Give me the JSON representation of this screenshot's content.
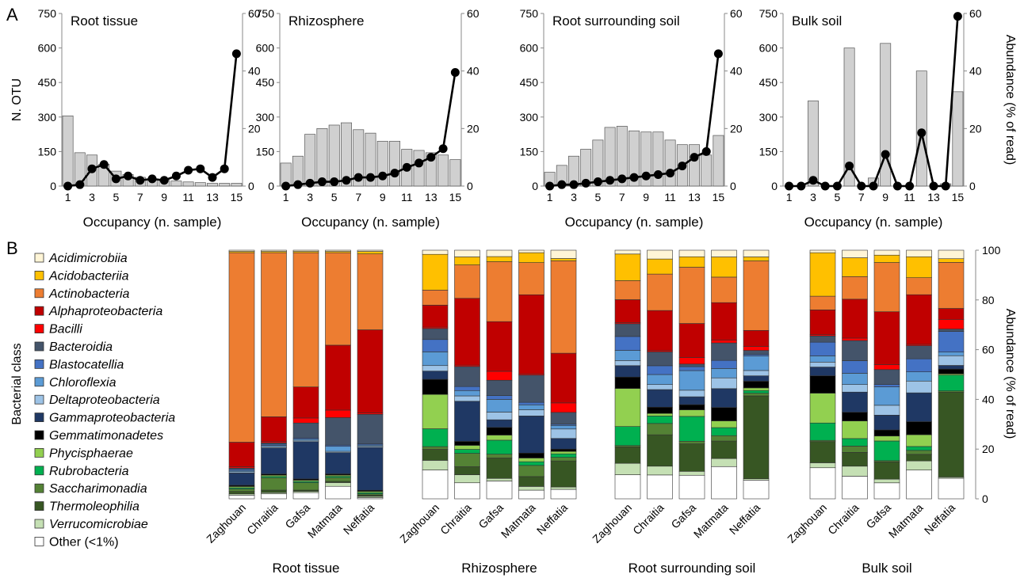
{
  "panel_a": {
    "letter": "A",
    "left_axis_label": "N. OTU",
    "right_axis_label": "Abundance (% of read)",
    "x_axis_label": "Occupancy (n. sample)",
    "left_ticks": [
      "0",
      "150",
      "300",
      "450",
      "600",
      "750"
    ],
    "right_ticks": [
      "0",
      "20",
      "40",
      "60"
    ],
    "x_ticks": [
      "1",
      "3",
      "5",
      "7",
      "9",
      "11",
      "13",
      "15"
    ]
  },
  "panel_b": {
    "letter": "B",
    "legend_title": "Bacterial class",
    "right_axis_label": "Abundance (% of read)",
    "right_ticks": [
      "0",
      "20",
      "40",
      "60",
      "80",
      "100"
    ]
  },
  "colors": {
    "bar_fill": "#d0d0d0",
    "line": "#000000"
  },
  "chart_data": [
    {
      "type": "bar+line",
      "title": "Root tissue",
      "x": [
        1,
        2,
        3,
        4,
        5,
        6,
        7,
        8,
        9,
        10,
        11,
        12,
        13,
        14,
        15
      ],
      "xlabel": "Occupancy (n. sample)",
      "ylabel": "N. OTU",
      "y2label": "Abundance (% of read)",
      "ylim": [
        0,
        750
      ],
      "y2lim": [
        0,
        60
      ],
      "bars": [
        305,
        145,
        135,
        95,
        65,
        50,
        38,
        28,
        25,
        22,
        18,
        15,
        12,
        12,
        12
      ],
      "line": [
        0,
        0.5,
        6,
        7.5,
        2.5,
        3.5,
        2,
        2.5,
        2,
        3.5,
        5.5,
        6,
        3,
        6,
        46
      ]
    },
    {
      "type": "bar+line",
      "title": "Rhizosphere",
      "x": [
        1,
        2,
        3,
        4,
        5,
        6,
        7,
        8,
        9,
        10,
        11,
        12,
        13,
        14,
        15
      ],
      "xlabel": "Occupancy (n. sample)",
      "ylim": [
        0,
        750
      ],
      "y2lim": [
        0,
        60
      ],
      "bars": [
        100,
        130,
        225,
        250,
        265,
        275,
        245,
        230,
        195,
        195,
        160,
        155,
        145,
        135,
        115
      ],
      "line": [
        0,
        0.5,
        1,
        1.5,
        1.5,
        2,
        3,
        3,
        3.5,
        4.5,
        6.5,
        8,
        10,
        13,
        39.5
      ]
    },
    {
      "type": "bar+line",
      "title": "Root surrounding soil",
      "x": [
        1,
        2,
        3,
        4,
        5,
        6,
        7,
        8,
        9,
        10,
        11,
        12,
        13,
        14,
        15
      ],
      "xlabel": "Occupancy (n. sample)",
      "ylim": [
        0,
        750
      ],
      "y2lim": [
        0,
        60
      ],
      "bars": [
        60,
        90,
        130,
        160,
        200,
        255,
        260,
        240,
        235,
        235,
        200,
        180,
        180,
        135,
        220
      ],
      "line": [
        0,
        0.5,
        0.5,
        1,
        1.5,
        2,
        2.5,
        3,
        3.5,
        4,
        4.5,
        7,
        10,
        12,
        46
      ]
    },
    {
      "type": "bar+line",
      "title": "Bulk soil",
      "x": [
        1,
        2,
        3,
        4,
        5,
        6,
        7,
        8,
        9,
        10,
        11,
        12,
        13,
        14,
        15
      ],
      "xlabel": "Occupancy (n. sample)",
      "y2label": "Abundance (% of read)",
      "ylim": [
        0,
        750
      ],
      "y2lim": [
        0,
        60
      ],
      "bars": [
        0,
        0,
        370,
        0,
        0,
        600,
        0,
        35,
        620,
        0,
        0,
        500,
        0,
        10,
        410
      ],
      "line": [
        0,
        0,
        2,
        0,
        0,
        7,
        0,
        0,
        11,
        0,
        0,
        18.5,
        0,
        0,
        59
      ]
    },
    {
      "type": "stacked-bar",
      "ylabel": "Abundance (% of read)",
      "ylim": [
        0,
        100
      ],
      "legend_title": "Bacterial class",
      "legend_position": "left",
      "classes": [
        {
          "name": "Acidimicrobiia",
          "color": "#fff5d6",
          "italic": true
        },
        {
          "name": "Acidobacteriia",
          "color": "#ffc000",
          "italic": true
        },
        {
          "name": "Actinobacteria",
          "color": "#ed7d31",
          "italic": true
        },
        {
          "name": "Alphaproteobacteria",
          "color": "#c00000",
          "italic": true
        },
        {
          "name": "Bacilli",
          "color": "#ff0000",
          "italic": true
        },
        {
          "name": "Bacteroidia",
          "color": "#44546a",
          "italic": true
        },
        {
          "name": "Blastocatellia",
          "color": "#4472c4",
          "italic": true
        },
        {
          "name": "Chloroflexia",
          "color": "#5b9bd5",
          "italic": true
        },
        {
          "name": "Deltaproteobacteria",
          "color": "#9dc3e6",
          "italic": true
        },
        {
          "name": "Gammaproteobacteria",
          "color": "#1f3864",
          "italic": true
        },
        {
          "name": "Gemmatimonadetes",
          "color": "#000000",
          "italic": true
        },
        {
          "name": "Phycisphaerae",
          "color": "#92d050",
          "italic": true
        },
        {
          "name": "Rubrobacteria",
          "color": "#00b050",
          "italic": true
        },
        {
          "name": "Saccharimonadia",
          "color": "#548235",
          "italic": true
        },
        {
          "name": "Thermoleophilia",
          "color": "#375623",
          "italic": true
        },
        {
          "name": "Verrucomicrobiae",
          "color": "#c5e0b4",
          "italic": true
        },
        {
          "name": "Other (<1%)",
          "color": "#ffffff",
          "italic": false
        }
      ],
      "groups": [
        {
          "name": "Root tissue",
          "sites": [
            {
              "name": "Zaghouan",
              "values": [
                0.5,
                0.5,
                77,
                10,
                0.5,
                0.5,
                0.5,
                0.5,
                0.5,
                5,
                0.5,
                0.5,
                0.5,
                1,
                1,
                0.5,
                1.5
              ]
            },
            {
              "name": "Chraitia",
              "values": [
                0.5,
                0.5,
                66,
                10,
                0.5,
                0.5,
                0.5,
                0.5,
                0.5,
                10.5,
                0.5,
                0.5,
                0.5,
                5,
                1,
                0.5,
                2
              ]
            },
            {
              "name": "Gafsa",
              "values": [
                0.5,
                0.5,
                54,
                12.5,
                2,
                6,
                0.5,
                0.5,
                0.5,
                15,
                0.5,
                0.5,
                0.5,
                3,
                0.5,
                0.5,
                2.5
              ]
            },
            {
              "name": "Matmata",
              "values": [
                0.5,
                0.5,
                37,
                26,
                3,
                11,
                0.5,
                2,
                0.5,
                8.5,
                0.5,
                0.5,
                0.5,
                1.5,
                0.5,
                1.5,
                5
              ]
            },
            {
              "name": "Neffatia",
              "values": [
                0.5,
                1,
                31,
                34,
                0.5,
                12,
                0.5,
                0.5,
                0.5,
                17.5,
                0.5,
                0.5,
                0.5,
                0.5,
                0.5,
                0.5,
                0.5
              ]
            }
          ]
        },
        {
          "name": "Rhizosphere",
          "sites": [
            {
              "name": "Zaghouan",
              "values": [
                1.5,
                13,
                5.5,
                8,
                0.5,
                4,
                4.5,
                5,
                2,
                3,
                5.5,
                12.5,
                6.5,
                1,
                4,
                3.5,
                10.5
              ]
            },
            {
              "name": "Chraitia",
              "values": [
                2.5,
                3,
                12.5,
                25,
                0.5,
                7.5,
                1.5,
                2,
                2,
                15,
                1.5,
                1.5,
                1.5,
                5,
                3,
                3,
                6
              ]
            },
            {
              "name": "Gafsa",
              "values": [
                2.5,
                2,
                23.5,
                19.5,
                3.5,
                6,
                1.5,
                5,
                3,
                3,
                3,
                2,
                5.5,
                1.5,
                8,
                1,
                7
              ]
            },
            {
              "name": "Matmata",
              "values": [
                1,
                4,
                13,
                32,
                0.5,
                11,
                1,
                2,
                2.5,
                15,
                2,
                1.5,
                1.5,
                4.5,
                4,
                1.5,
                3.5
              ]
            },
            {
              "name": "Neffatia",
              "values": [
                3.5,
                1,
                39,
                21,
                4,
                5,
                0.5,
                1.5,
                4,
                4.5,
                1,
                1,
                1.5,
                1.5,
                11,
                1,
                4
              ]
            }
          ]
        },
        {
          "name": "Root surrounding soil",
          "sites": [
            {
              "name": "Zaghouan",
              "values": [
                1.5,
                10.5,
                7.5,
                9,
                0.5,
                5,
                5.5,
                4,
                2,
                4.5,
                4.5,
                15,
                7.5,
                0.5,
                6.5,
                4.5,
                9.5
              ]
            },
            {
              "name": "Chraitia",
              "values": [
                3.5,
                6,
                14.5,
                16,
                0.5,
                5.5,
                3.5,
                4,
                2,
                7,
                2.5,
                1,
                3,
                4.5,
                12.5,
                3.5,
                9.5
              ]
            },
            {
              "name": "Gafsa",
              "values": [
                2.5,
                4,
                21.5,
                13,
                2.5,
                1,
                1.5,
                7.5,
                2.5,
                3,
                2,
                2.5,
                9.5,
                1,
                10.5,
                1.5,
                9
              ]
            },
            {
              "name": "Matmata",
              "values": [
                2.5,
                7.5,
                9.5,
                14,
                1,
                6.5,
                3,
                3.5,
                4,
                7,
                5,
                2.5,
                3,
                2,
                6.5,
                3,
                12
              ]
            },
            {
              "name": "Neffatia",
              "values": [
                2.5,
                1.5,
                26,
                6,
                1.5,
                1.5,
                0.5,
                5.5,
                2,
                2,
                2.5,
                1,
                1,
                1,
                31,
                0.5,
                7
              ]
            }
          ]
        },
        {
          "name": "Bulk soil",
          "sites": [
            {
              "name": "Zaghouan",
              "values": [
                1,
                17.5,
                5.5,
                10,
                0.5,
                2.5,
                5.5,
                2.5,
                2,
                3.5,
                7,
                12,
                7,
                0.5,
                8.5,
                2,
                12.5
              ]
            },
            {
              "name": "Chraitia",
              "values": [
                3,
                7.5,
                9,
                15.5,
                1,
                8,
                5,
                4.5,
                3,
                8,
                3.5,
                7,
                3,
                2.5,
                5.5,
                4,
                9
              ]
            },
            {
              "name": "Gafsa",
              "values": [
                2,
                3,
                20,
                21.5,
                2,
                6,
                1,
                7.5,
                4,
                6,
                2.5,
                2,
                8,
                0.5,
                7,
                1.5,
                6.5
              ]
            },
            {
              "name": "Matmata",
              "values": [
                2.5,
                8,
                6.5,
                19,
                0.5,
                5,
                5,
                3.5,
                4.5,
                11,
                5,
                4.5,
                1.5,
                1.5,
                2.5,
                3.5,
                11
              ]
            },
            {
              "name": "Neffatia",
              "values": [
                3.5,
                1.5,
                19,
                4.5,
                4,
                1,
                8.5,
                1.5,
                4,
                1.5,
                2,
                0.5,
                6.5,
                0.5,
                35,
                0.5,
                8.5
              ]
            }
          ]
        }
      ]
    }
  ]
}
